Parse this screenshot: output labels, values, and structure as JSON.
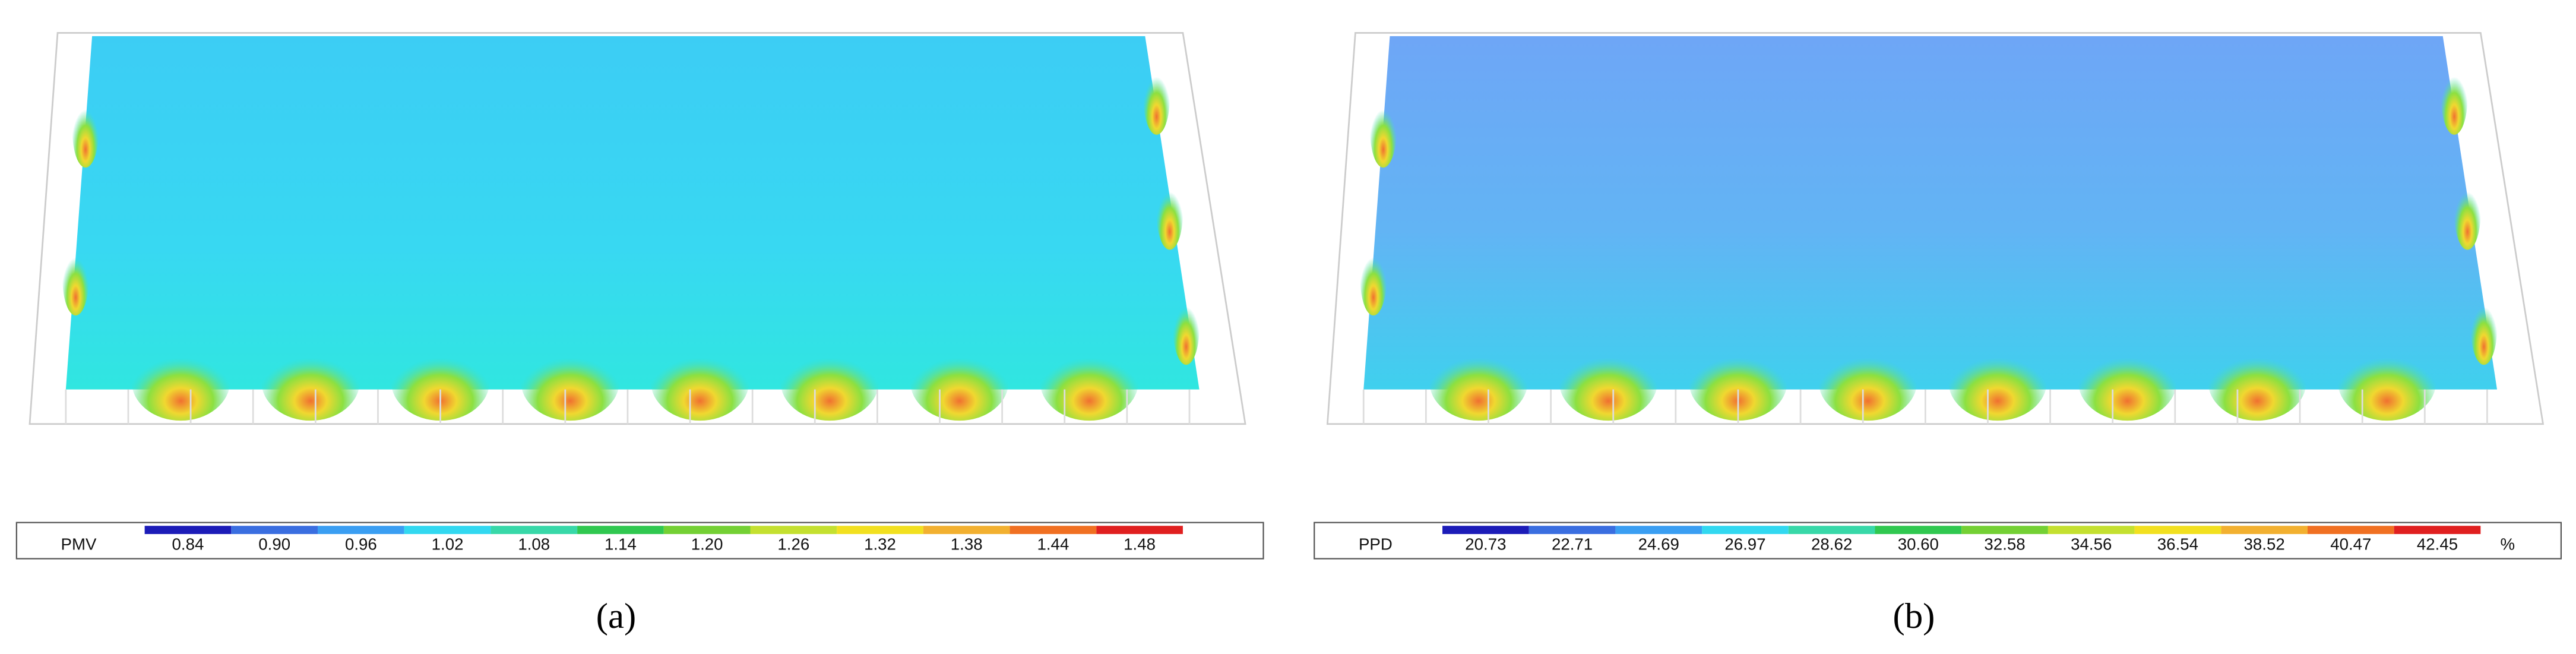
{
  "panels": [
    {
      "caption": "(a)",
      "colorbar": {
        "label": "PMV",
        "ticks": [
          "0.84",
          "0.90",
          "0.96",
          "1.02",
          "1.08",
          "1.14",
          "1.20",
          "1.26",
          "1.32",
          "1.38",
          "1.44",
          "1.48"
        ]
      }
    },
    {
      "caption": "(b)",
      "colorbar": {
        "label": "PPD",
        "ticks": [
          "20.73",
          "22.71",
          "24.69",
          "26.97",
          "28.62",
          "30.60",
          "32.58",
          "34.56",
          "36.54",
          "38.52",
          "40.47",
          "42.45"
        ],
        "unit": "%"
      }
    }
  ]
}
